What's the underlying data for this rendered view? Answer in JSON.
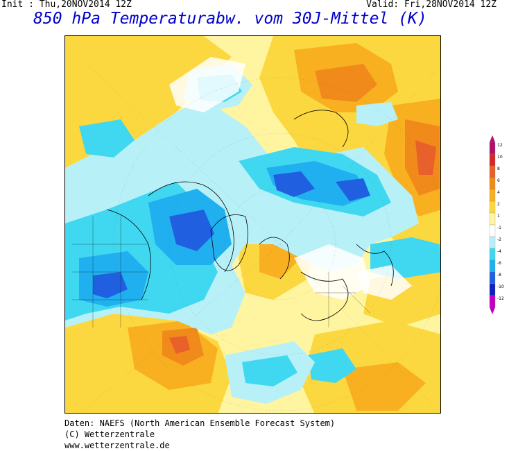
{
  "header": {
    "init": "Init : Thu,20NOV2014 12Z",
    "valid": "Valid: Fri,28NOV2014 12Z",
    "title": "850 hPa Temperaturabw. vom 30J-Mittel (K)"
  },
  "footer": {
    "line1": "Daten: NAEFS (North American Ensemble Forecast System)",
    "line2": "(C) Wetterzentrale",
    "line3": "www.wetterzentrale.de"
  },
  "legend": {
    "labels": [
      "12",
      "10",
      "8",
      "6",
      "4",
      "2",
      "1",
      "-1",
      "-2",
      "-4",
      "-6",
      "-8",
      "-10",
      "-12"
    ],
    "colors": [
      "#b0106a",
      "#d2282a",
      "#e8602a",
      "#f08a1a",
      "#f8b020",
      "#fcd840",
      "#fff5a0",
      "#ffffff",
      "#b8f0f8",
      "#40d8f0",
      "#20b0f0",
      "#2060e0",
      "#1020c0",
      "#c000c0"
    ]
  },
  "palette": {
    "white": "#ffffff",
    "light_yellow": "#fff5a0",
    "yellow": "#fcd840",
    "orange": "#f8b020",
    "dark_orange": "#f08a1a",
    "red_orange": "#e8602a",
    "light_cyan": "#b8f0f8",
    "cyan": "#40d8f0",
    "sky": "#20b0f0",
    "blue": "#2060e0",
    "dark_blue": "#1020c0"
  }
}
